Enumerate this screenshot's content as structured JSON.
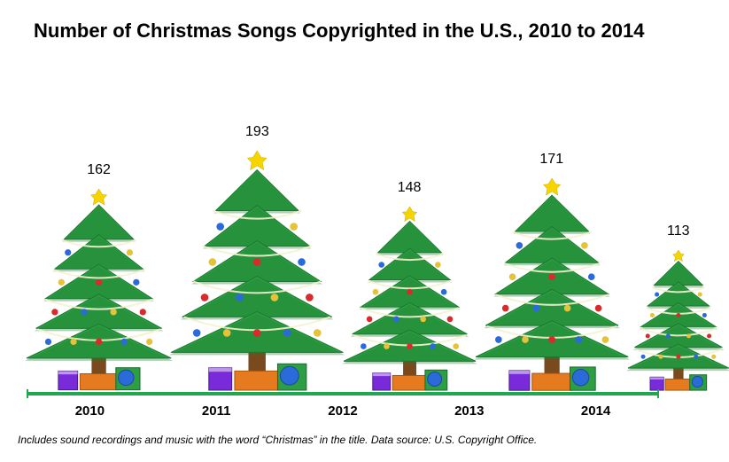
{
  "chart": {
    "type": "pictorial-bar",
    "title": "Number of Christmas Songs Copyrighted in the U.S., 2010 to 2014",
    "title_fontsize": 22,
    "title_fontweight": "bold",
    "categories": [
      "2010",
      "2011",
      "2012",
      "2013",
      "2014"
    ],
    "values": [
      162,
      193,
      148,
      171,
      113
    ],
    "value_fontsize": 16,
    "xlabel_fontsize": 15,
    "xlabel_fontweight": "bold",
    "max_tree_height": 270,
    "max_value": 193,
    "axis_color": "#1fa84f",
    "background_color": "#ffffff",
    "tree_colors": {
      "foliage_dark": "#1a7a2e",
      "foliage_mid": "#2e9e44",
      "foliage_light": "#4cc45e",
      "trunk": "#7a4a1f",
      "star": "#f5d400",
      "ornament_red": "#d92b2b",
      "ornament_blue": "#2b6bd9",
      "ornament_gold": "#e6c23a",
      "garland": "#f5f2d0",
      "present_orange": "#e67a1f",
      "present_purple": "#7a2bd9",
      "present_green": "#2e9e44",
      "present_blue": "#2b6bd9"
    },
    "footnote": "Includes sound recordings and music with the word “Christmas” in the title. Data source: U.S. Copyright Office.",
    "footnote_fontsize": 12
  }
}
